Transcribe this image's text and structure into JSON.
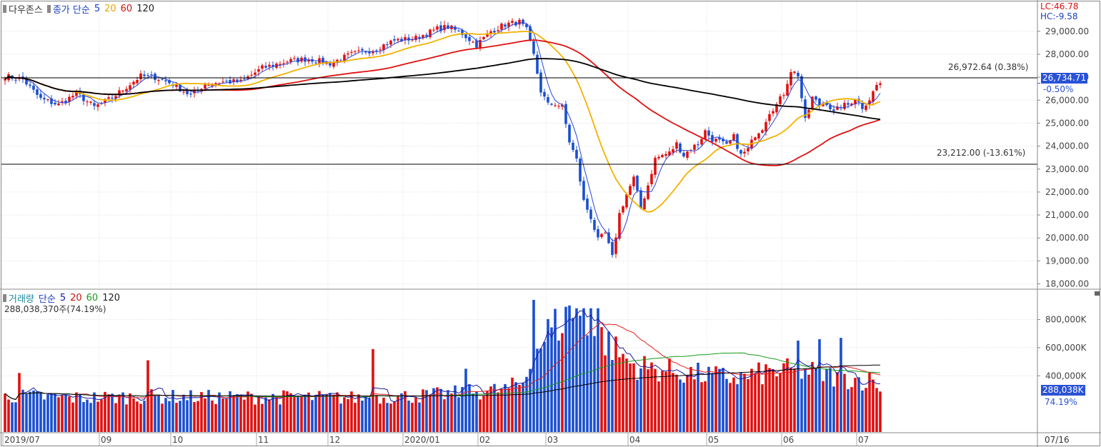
{
  "price_panel": {
    "title": "다우존스",
    "legend_prefix": "종가 단순",
    "ma_periods": [
      "5",
      "20",
      "60",
      "120"
    ],
    "ma_colors": [
      "#2a45d6",
      "#f2b200",
      "#e01010",
      "#000000"
    ],
    "indicator_lc": "LC:46.78",
    "indicator_hc": "HC:-9.58",
    "current_price_label": "26,734.71",
    "current_change_label": "-0.50%",
    "high_line_label": "26,972.64 (0.38%)",
    "low_line_label": "23,212.00 (-13.61%)"
  },
  "volume_panel": {
    "title": "거래량",
    "legend_prefix": "단순",
    "ma_periods": [
      "5",
      "20",
      "60",
      "120"
    ],
    "ma_colors": [
      "#1a1aa0",
      "#e02020",
      "#1a9a1a",
      "#000000"
    ],
    "current_volume_text": "288,038,370주(74.19%)",
    "current_volume_label": "288,038K",
    "current_volume_pct_label": "74.19%"
  },
  "x_axis_labels": [
    "2019/07",
    "09",
    "10",
    "11",
    "12",
    "2020/01",
    "02",
    "03",
    "04",
    "05",
    "06",
    "07"
  ],
  "x_axis_right_label": "07/16",
  "chart_data": [
    {
      "type": "candlestick",
      "y_range": [
        17800,
        30300
      ],
      "y_ticks": [
        18000,
        19000,
        20000,
        21000,
        22000,
        23000,
        24000,
        25000,
        26000,
        27000,
        28000,
        29000
      ],
      "y_tick_labels": [
        "18,000.00",
        "19,000.00",
        "20,000.00",
        "21,000.00",
        "22,000.00",
        "23,000.00",
        "24,000.00",
        "25,000.00",
        "26,000.00",
        "27,000.00",
        "28,000.00",
        "29,000.00"
      ],
      "horizontal_lines": [
        26972.64,
        23212.0
      ],
      "up_color": "#e01010",
      "down_color": "#1a4fd0",
      "grid": true,
      "close_anchors": [
        [
          0,
          27050
        ],
        [
          5,
          26900
        ],
        [
          10,
          26050
        ],
        [
          15,
          25800
        ],
        [
          20,
          26300
        ],
        [
          25,
          25700
        ],
        [
          30,
          26100
        ],
        [
          35,
          26700
        ],
        [
          38,
          27050
        ],
        [
          42,
          27000
        ],
        [
          47,
          26700
        ],
        [
          52,
          26200
        ],
        [
          56,
          26700
        ],
        [
          61,
          26800
        ],
        [
          66,
          26800
        ],
        [
          72,
          27400
        ],
        [
          79,
          27700
        ],
        [
          85,
          27800
        ],
        [
          91,
          27600
        ],
        [
          97,
          28000
        ],
        [
          103,
          28200
        ],
        [
          109,
          28600
        ],
        [
          115,
          28700
        ],
        [
          121,
          29100
        ],
        [
          124,
          29200
        ],
        [
          128,
          28900
        ],
        [
          132,
          28400
        ],
        [
          136,
          29000
        ],
        [
          140,
          29300
        ],
        [
          144,
          29400
        ],
        [
          146,
          29050
        ],
        [
          148,
          27950
        ],
        [
          150,
          26400
        ],
        [
          152,
          25800
        ],
        [
          154,
          25850
        ],
        [
          156,
          25700
        ],
        [
          158,
          24200
        ],
        [
          160,
          23400
        ],
        [
          162,
          21600
        ],
        [
          164,
          20900
        ],
        [
          166,
          19900
        ],
        [
          168,
          20200
        ],
        [
          170,
          19150
        ],
        [
          172,
          21050
        ],
        [
          174,
          21900
        ],
        [
          176,
          22600
        ],
        [
          178,
          21300
        ],
        [
          180,
          22300
        ],
        [
          182,
          23450
        ],
        [
          184,
          23600
        ],
        [
          186,
          23700
        ],
        [
          188,
          24100
        ],
        [
          190,
          23600
        ],
        [
          192,
          23900
        ],
        [
          194,
          24100
        ],
        [
          196,
          24650
        ],
        [
          198,
          24300
        ],
        [
          200,
          24200
        ],
        [
          202,
          24000
        ],
        [
          204,
          24400
        ],
        [
          206,
          23600
        ],
        [
          208,
          23850
        ],
        [
          210,
          24500
        ],
        [
          212,
          24800
        ],
        [
          214,
          25500
        ],
        [
          216,
          25800
        ],
        [
          218,
          26300
        ],
        [
          220,
          27300
        ],
        [
          222,
          27100
        ],
        [
          224,
          25100
        ],
        [
          226,
          26100
        ],
        [
          228,
          25800
        ],
        [
          230,
          25900
        ],
        [
          232,
          25450
        ],
        [
          234,
          25750
        ],
        [
          236,
          25800
        ],
        [
          238,
          26100
        ],
        [
          240,
          25700
        ],
        [
          242,
          26050
        ],
        [
          244,
          26650
        ],
        [
          245,
          26734.71
        ]
      ],
      "moving_average_periods": [
        5,
        20,
        60,
        120
      ]
    },
    {
      "type": "bar",
      "y_range": [
        0,
        960000
      ],
      "y_ticks": [
        400000,
        600000,
        800000
      ],
      "y_tick_labels": [
        "400,000K",
        "600,000K",
        "800,000K"
      ],
      "value_unit": "thousand shares",
      "volume_anchors": [
        [
          0,
          260000
        ],
        [
          20,
          245000
        ],
        [
          40,
          255000
        ],
        [
          60,
          250000
        ],
        [
          80,
          250000
        ],
        [
          100,
          245000
        ],
        [
          110,
          255000
        ],
        [
          120,
          265000
        ],
        [
          130,
          285000
        ],
        [
          140,
          305000
        ],
        [
          145,
          355000
        ],
        [
          148,
          560000
        ],
        [
          152,
          720000
        ],
        [
          156,
          800000
        ],
        [
          160,
          790000
        ],
        [
          164,
          740000
        ],
        [
          168,
          660000
        ],
        [
          172,
          560000
        ],
        [
          176,
          480000
        ],
        [
          180,
          460000
        ],
        [
          186,
          440000
        ],
        [
          192,
          420000
        ],
        [
          198,
          400000
        ],
        [
          206,
          390000
        ],
        [
          214,
          430000
        ],
        [
          220,
          440000
        ],
        [
          224,
          440000
        ],
        [
          232,
          400000
        ],
        [
          238,
          380000
        ],
        [
          244,
          370000
        ],
        [
          245,
          288038
        ]
      ],
      "spikes": [
        [
          4,
          420000
        ],
        [
          40,
          510000
        ],
        [
          103,
          590000
        ],
        [
          129,
          450000
        ],
        [
          148,
          940000
        ],
        [
          158,
          900000
        ],
        [
          160,
          880000
        ],
        [
          162,
          880000
        ],
        [
          164,
          880000
        ],
        [
          166,
          880000
        ],
        [
          222,
          650000
        ],
        [
          228,
          660000
        ],
        [
          234,
          670000
        ]
      ],
      "moving_average_periods": [
        5,
        20,
        60,
        120
      ]
    }
  ]
}
